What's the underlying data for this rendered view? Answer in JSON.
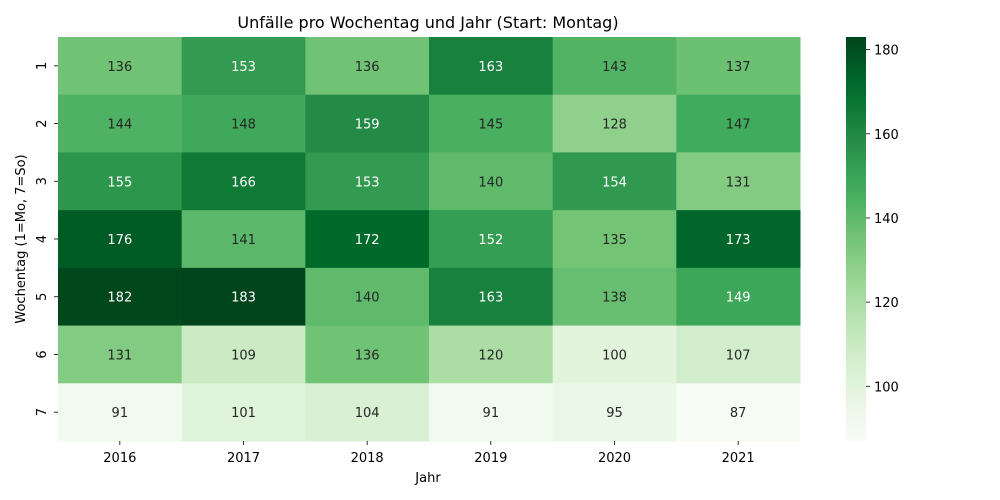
{
  "chart_data": {
    "type": "heatmap",
    "title": "Unfälle pro Wochentag und Jahr (Start: Montag)",
    "xlabel": "Jahr",
    "ylabel": "Wochentag (1=Mo, 7=So)",
    "x_categories": [
      "2016",
      "2017",
      "2018",
      "2019",
      "2020",
      "2021"
    ],
    "y_categories": [
      "1",
      "2",
      "3",
      "4",
      "5",
      "6",
      "7"
    ],
    "values": [
      [
        136,
        153,
        136,
        163,
        143,
        137
      ],
      [
        144,
        148,
        159,
        145,
        128,
        147
      ],
      [
        155,
        166,
        153,
        140,
        154,
        131
      ],
      [
        176,
        141,
        172,
        152,
        135,
        173
      ],
      [
        182,
        183,
        140,
        163,
        138,
        149
      ],
      [
        131,
        109,
        136,
        120,
        100,
        107
      ],
      [
        91,
        101,
        104,
        91,
        95,
        87
      ]
    ],
    "colormap": "Greens",
    "value_range": [
      87,
      183
    ],
    "colorbar_ticks": [
      "100",
      "120",
      "140",
      "160",
      "180"
    ],
    "annotations": true
  }
}
